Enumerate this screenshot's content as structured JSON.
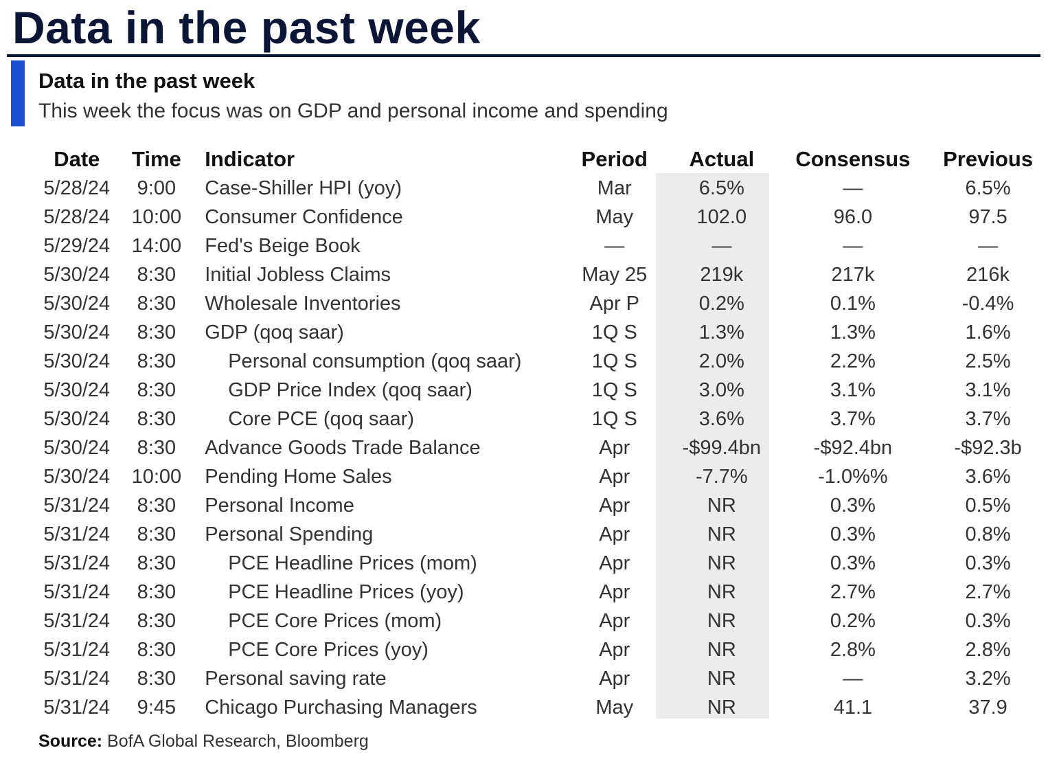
{
  "page": {
    "title": "Data in the past week"
  },
  "exhibit": {
    "title": "Data in the past week",
    "subtitle": "This week the focus was on GDP and personal income and spending"
  },
  "table": {
    "headers": {
      "date": "Date",
      "time": "Time",
      "indicator": "Indicator",
      "period": "Period",
      "actual": "Actual",
      "consensus": "Consensus",
      "previous": "Previous"
    },
    "rows": [
      {
        "date": "5/28/24",
        "time": "9:00",
        "indicator": "Case-Shiller HPI (yoy)",
        "sub": false,
        "period": "Mar",
        "actual": "6.5%",
        "consensus": "—",
        "previous": "6.5%"
      },
      {
        "date": "5/28/24",
        "time": "10:00",
        "indicator": "Consumer Confidence",
        "sub": false,
        "period": "May",
        "actual": "102.0",
        "consensus": "96.0",
        "previous": "97.5"
      },
      {
        "date": "5/29/24",
        "time": "14:00",
        "indicator": "Fed's Beige Book",
        "sub": false,
        "period": "—",
        "actual": "—",
        "consensus": "—",
        "previous": "—"
      },
      {
        "date": "5/30/24",
        "time": "8:30",
        "indicator": "Initial Jobless Claims",
        "sub": false,
        "period": "May 25",
        "actual": "219k",
        "consensus": "217k",
        "previous": "216k"
      },
      {
        "date": "5/30/24",
        "time": "8:30",
        "indicator": "Wholesale Inventories",
        "sub": false,
        "period": "Apr P",
        "actual": "0.2%",
        "consensus": "0.1%",
        "previous": "-0.4%"
      },
      {
        "date": "5/30/24",
        "time": "8:30",
        "indicator": "GDP (qoq saar)",
        "sub": false,
        "period": "1Q S",
        "actual": "1.3%",
        "consensus": "1.3%",
        "previous": "1.6%"
      },
      {
        "date": "5/30/24",
        "time": "8:30",
        "indicator": "Personal consumption (qoq saar)",
        "sub": true,
        "period": "1Q S",
        "actual": "2.0%",
        "consensus": "2.2%",
        "previous": "2.5%"
      },
      {
        "date": "5/30/24",
        "time": "8:30",
        "indicator": "GDP Price Index (qoq saar)",
        "sub": true,
        "period": "1Q S",
        "actual": "3.0%",
        "consensus": "3.1%",
        "previous": "3.1%"
      },
      {
        "date": "5/30/24",
        "time": "8:30",
        "indicator": "Core PCE (qoq saar)",
        "sub": true,
        "period": "1Q S",
        "actual": "3.6%",
        "consensus": "3.7%",
        "previous": "3.7%"
      },
      {
        "date": "5/30/24",
        "time": "8:30",
        "indicator": "Advance Goods Trade Balance",
        "sub": false,
        "period": "Apr",
        "actual": "-$99.4bn",
        "consensus": "-$92.4bn",
        "previous": "-$92.3b"
      },
      {
        "date": "5/30/24",
        "time": "10:00",
        "indicator": "Pending Home Sales",
        "sub": false,
        "period": "Apr",
        "actual": "-7.7%",
        "consensus": "-1.0%%",
        "previous": "3.6%"
      },
      {
        "date": "5/31/24",
        "time": "8:30",
        "indicator": "Personal Income",
        "sub": false,
        "period": "Apr",
        "actual": "NR",
        "consensus": "0.3%",
        "previous": "0.5%"
      },
      {
        "date": "5/31/24",
        "time": "8:30",
        "indicator": "Personal Spending",
        "sub": false,
        "period": "Apr",
        "actual": "NR",
        "consensus": "0.3%",
        "previous": "0.8%"
      },
      {
        "date": "5/31/24",
        "time": "8:30",
        "indicator": "PCE Headline Prices (mom)",
        "sub": true,
        "period": "Apr",
        "actual": "NR",
        "consensus": "0.3%",
        "previous": "0.3%"
      },
      {
        "date": "5/31/24",
        "time": "8:30",
        "indicator": "PCE Headline Prices (yoy)",
        "sub": true,
        "period": "Apr",
        "actual": "NR",
        "consensus": "2.7%",
        "previous": "2.7%"
      },
      {
        "date": "5/31/24",
        "time": "8:30",
        "indicator": "PCE Core Prices (mom)",
        "sub": true,
        "period": "Apr",
        "actual": "NR",
        "consensus": "0.2%",
        "previous": "0.3%"
      },
      {
        "date": "5/31/24",
        "time": "8:30",
        "indicator": "PCE Core Prices (yoy)",
        "sub": true,
        "period": "Apr",
        "actual": "NR",
        "consensus": "2.8%",
        "previous": "2.8%"
      },
      {
        "date": "5/31/24",
        "time": "8:30",
        "indicator": "Personal saving rate",
        "sub": false,
        "period": "Apr",
        "actual": "NR",
        "consensus": "—",
        "previous": "3.2%"
      },
      {
        "date": "5/31/24",
        "time": "9:45",
        "indicator": "Chicago Purchasing Managers",
        "sub": false,
        "period": "May",
        "actual": "NR",
        "consensus": "41.1",
        "previous": "37.9"
      }
    ]
  },
  "source": {
    "label": "Source:",
    "text": "BofA Global Research, Bloomberg"
  },
  "colors": {
    "title_navy": "#0b1535",
    "accent_blue": "#1c4fd4",
    "actual_shade": "#ececec"
  }
}
